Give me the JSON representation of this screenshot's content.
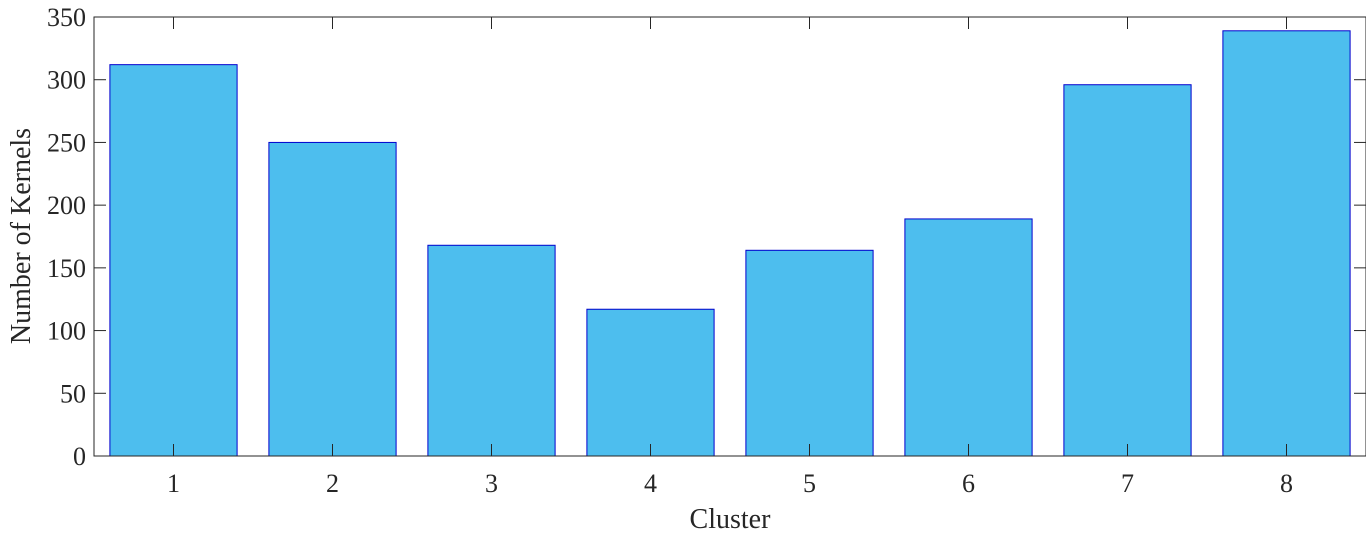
{
  "chart_data": {
    "type": "bar",
    "categories": [
      "1",
      "2",
      "3",
      "4",
      "5",
      "6",
      "7",
      "8"
    ],
    "values": [
      312,
      250,
      168,
      117,
      164,
      189,
      296,
      339
    ],
    "xlabel": "Cluster",
    "ylabel": "Number of Kernels",
    "ylim": [
      0,
      350
    ],
    "yticks": [
      "0",
      "50",
      "100",
      "150",
      "200",
      "250",
      "300",
      "350"
    ],
    "grid": false,
    "bar_fill": "#4DBEEE",
    "bar_edge": "#0000CD"
  }
}
